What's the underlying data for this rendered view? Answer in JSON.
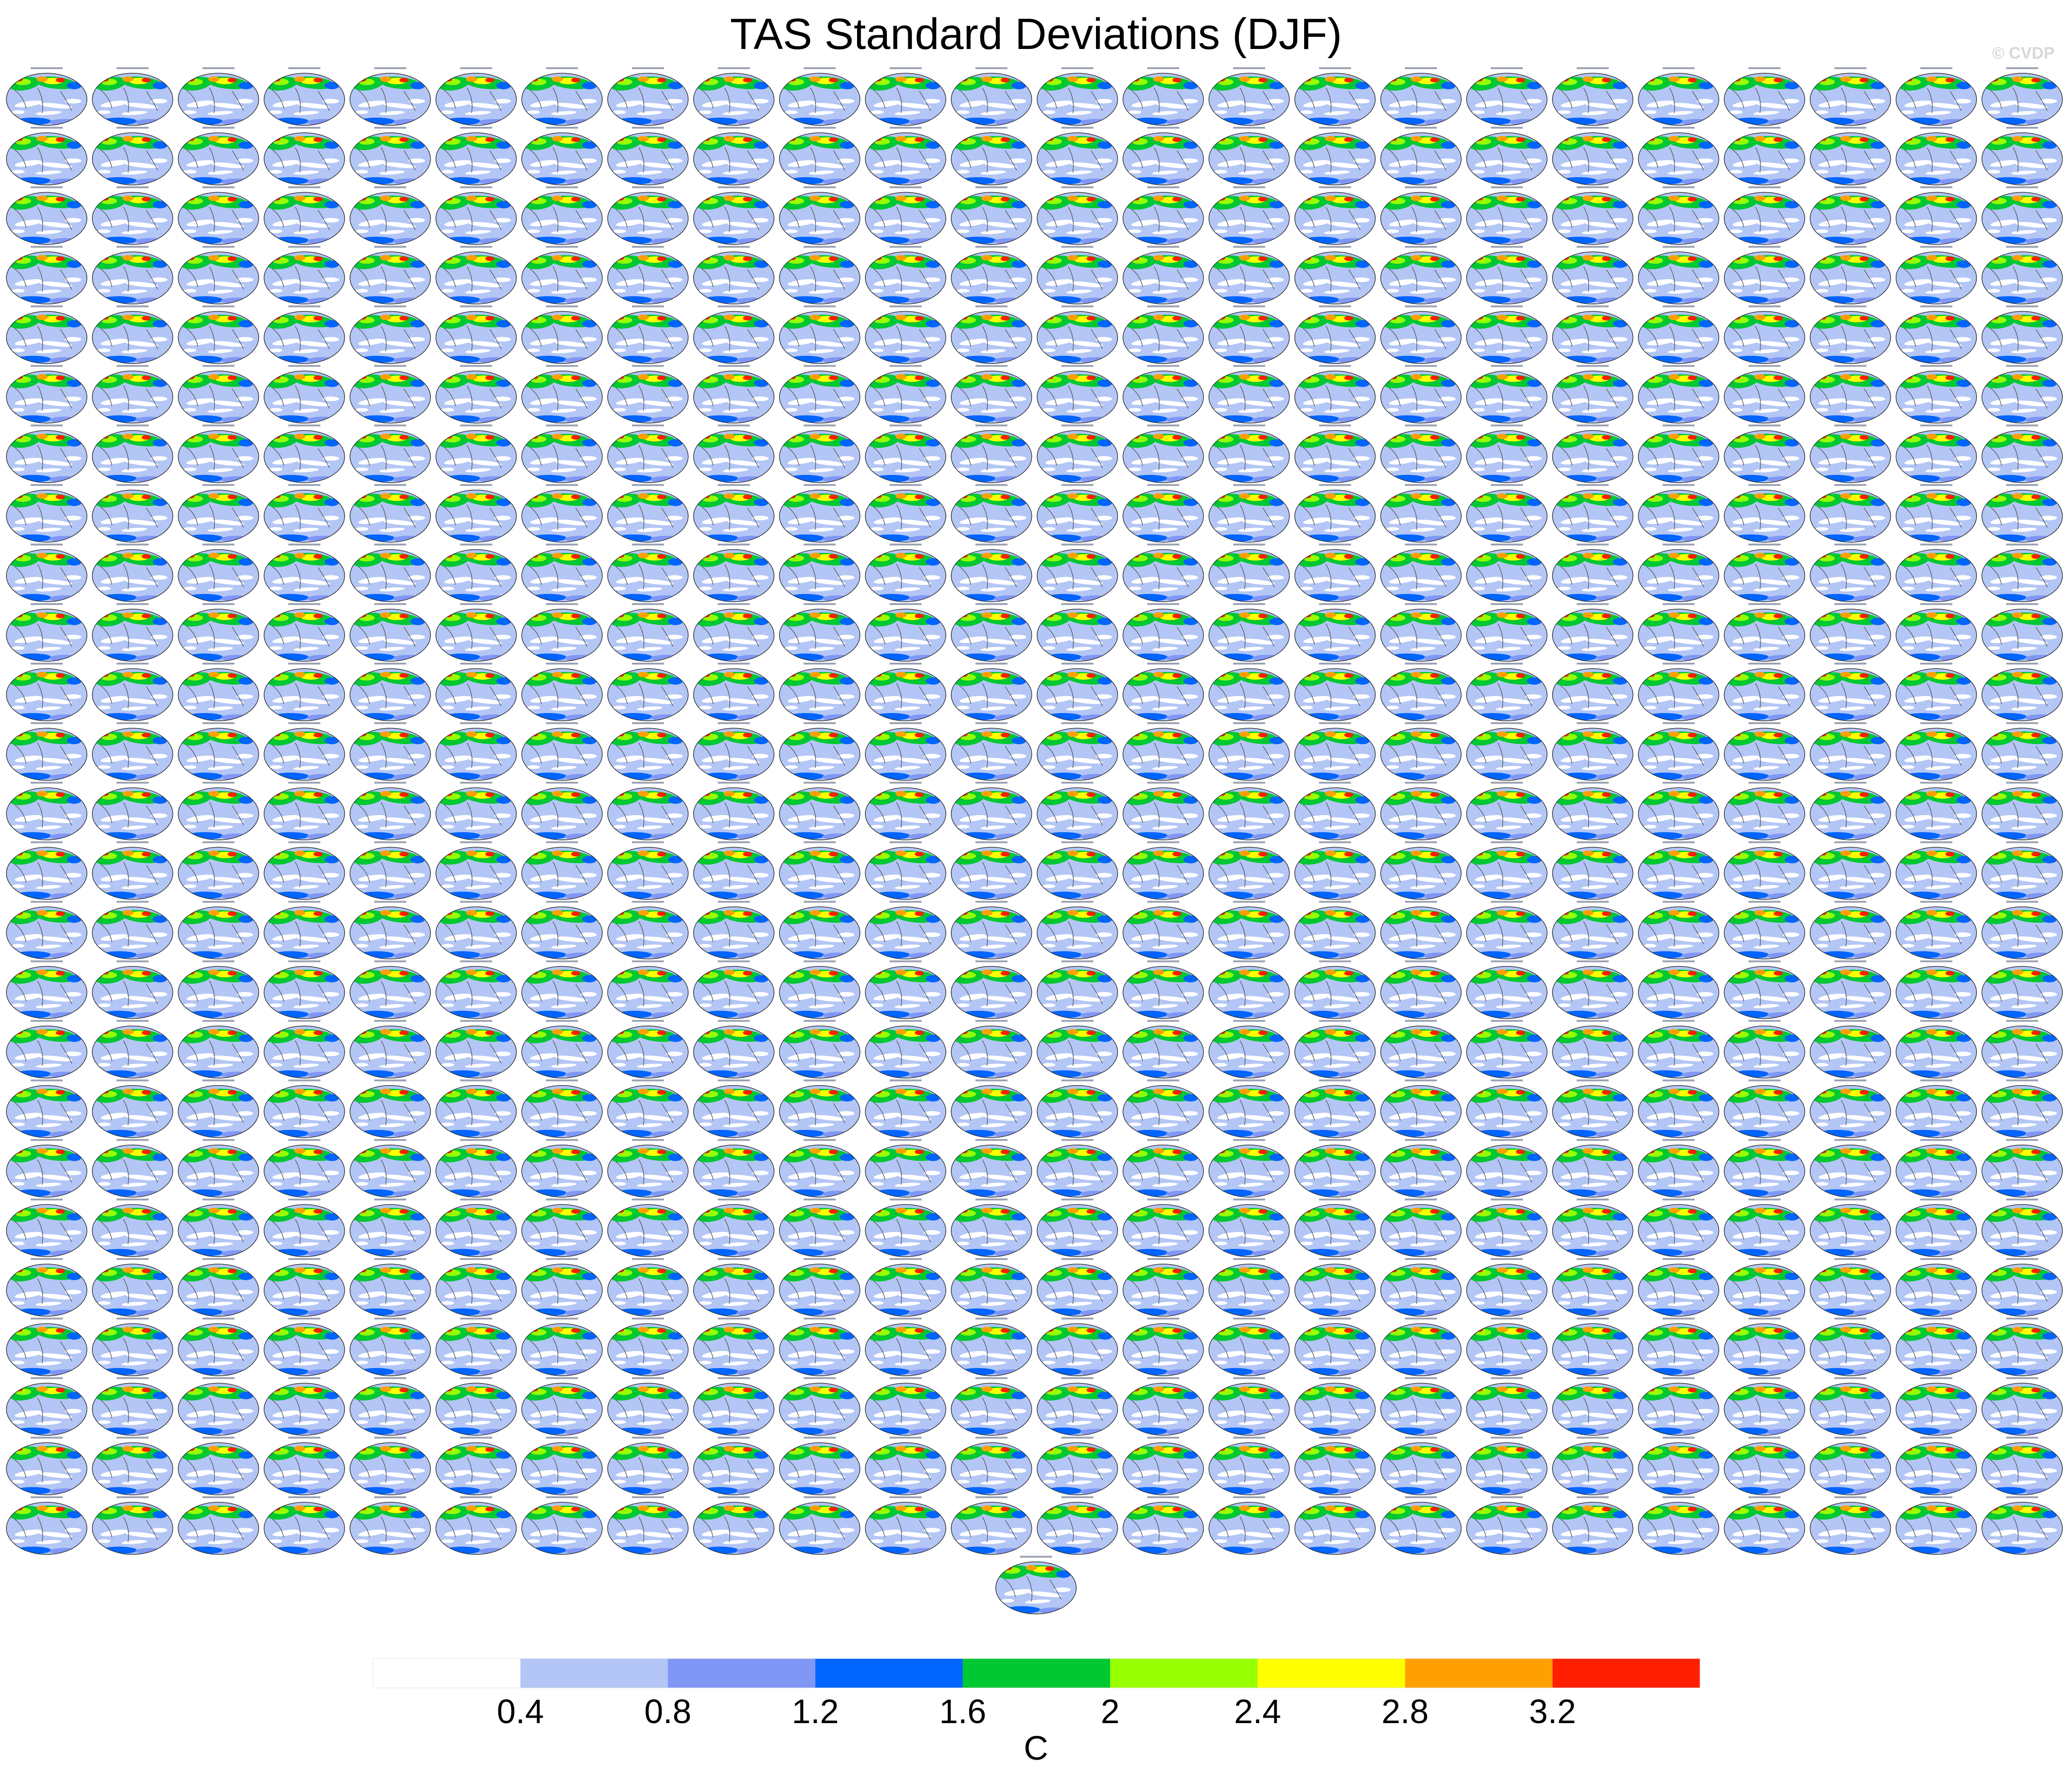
{
  "title": "TAS Standard Deviations (DJF)",
  "watermark": "© CVDP",
  "chart_data": {
    "type": "heatmap",
    "title": "TAS Standard Deviations (DJF)",
    "panel_grid": {
      "rows": 25,
      "columns": 24,
      "extra_panels_last_row": 1
    },
    "colorbar": {
      "unit": "C",
      "ticks": [
        "0.4",
        "0.8",
        "1.2",
        "1.6",
        "2",
        "2.4",
        "2.8",
        "3.2"
      ],
      "levels": [
        0.4,
        0.8,
        1.2,
        1.6,
        2,
        2.4,
        2.8,
        3.2
      ],
      "colors": [
        "#ffffff",
        "#b3c6f5",
        "#8097f5",
        "#0064ff",
        "#00c832",
        "#96ff00",
        "#ffff00",
        "#ffa000",
        "#ff1e00"
      ]
    }
  }
}
